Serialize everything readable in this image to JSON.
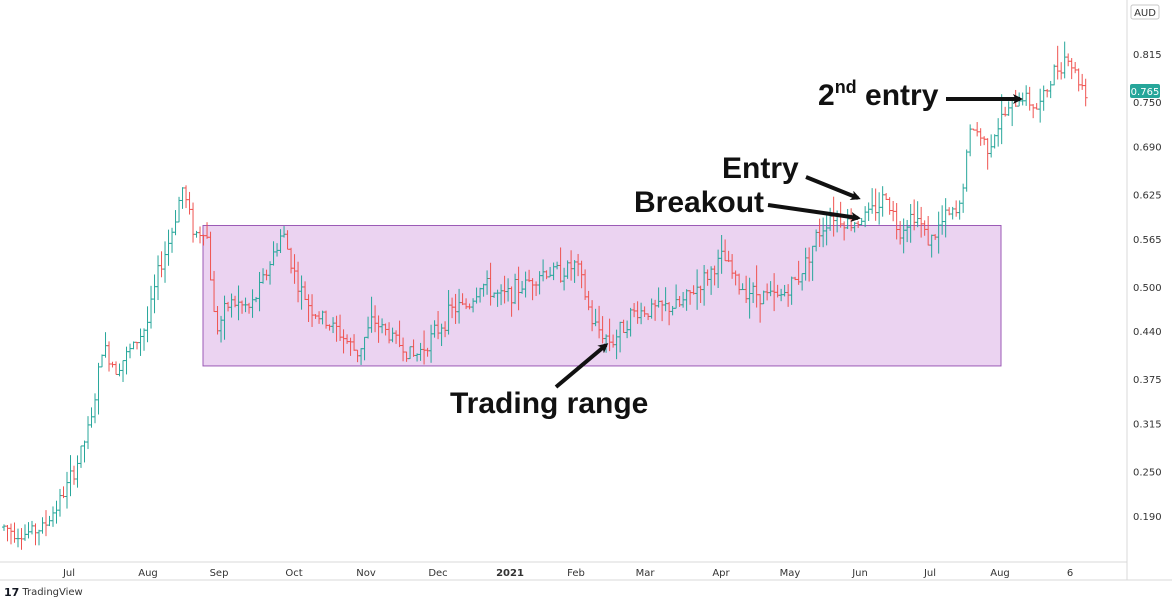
{
  "branding": {
    "logo_icon": "tradingview-logo-icon",
    "label": "TradingView"
  },
  "currency_label": "AUD",
  "annotations": {
    "second_entry": {
      "main": "2",
      "sup": "nd",
      "rest": " entry"
    },
    "entry": "Entry",
    "breakout": "Breakout",
    "trading_range": "Trading range"
  },
  "colors": {
    "up": "#26a69a",
    "down": "#ef5350",
    "range_fill": "#e4c4ec",
    "range_stroke": "#9b59b6",
    "last_price_bg": "#26a69a",
    "annotation_text": "#111111"
  },
  "chart_data": {
    "type": "ohlc",
    "symbol_currency": "AUD",
    "last_price": 0.765,
    "last_price_label": "0.765",
    "y_ticks": [
      0.815,
      0.75,
      0.69,
      0.625,
      0.565,
      0.5,
      0.44,
      0.375,
      0.315,
      0.25,
      0.19
    ],
    "y_tick_labels": [
      "0.815",
      "0.750",
      "0.690",
      "0.625",
      "0.565",
      "0.500",
      "0.440",
      "0.375",
      "0.315",
      "0.250",
      "0.190"
    ],
    "ylim": [
      0.14,
      0.875
    ],
    "x_ticks": [
      "Jul",
      "Aug",
      "Sep",
      "Oct",
      "Nov",
      "Dec",
      "2021",
      "Feb",
      "Mar",
      "Apr",
      "May",
      "Jun",
      "Jul",
      "Aug",
      "6"
    ],
    "grid": false,
    "trading_range": {
      "low": 0.393,
      "high": 0.583,
      "start": "Sep",
      "end": "Aug"
    },
    "price_path": [
      [
        0,
        0.175
      ],
      [
        12,
        0.165
      ],
      [
        25,
        0.175
      ],
      [
        35,
        0.21
      ],
      [
        45,
        0.255
      ],
      [
        55,
        0.32
      ],
      [
        62,
        0.42
      ],
      [
        70,
        0.39
      ],
      [
        80,
        0.415
      ],
      [
        90,
        0.45
      ],
      [
        97,
        0.52
      ],
      [
        105,
        0.57
      ],
      [
        112,
        0.635
      ],
      [
        120,
        0.57
      ],
      [
        127,
        0.58
      ],
      [
        133,
        0.44
      ],
      [
        142,
        0.48
      ],
      [
        155,
        0.47
      ],
      [
        165,
        0.52
      ],
      [
        175,
        0.575
      ],
      [
        185,
        0.5
      ],
      [
        195,
        0.465
      ],
      [
        210,
        0.44
      ],
      [
        222,
        0.41
      ],
      [
        232,
        0.455
      ],
      [
        245,
        0.43
      ],
      [
        258,
        0.405
      ],
      [
        272,
        0.44
      ],
      [
        282,
        0.47
      ],
      [
        292,
        0.475
      ],
      [
        300,
        0.505
      ],
      [
        312,
        0.485
      ],
      [
        325,
        0.5
      ],
      [
        338,
        0.52
      ],
      [
        350,
        0.52
      ],
      [
        360,
        0.53
      ],
      [
        370,
        0.45
      ],
      [
        382,
        0.425
      ],
      [
        395,
        0.465
      ],
      [
        410,
        0.47
      ],
      [
        425,
        0.475
      ],
      [
        440,
        0.51
      ],
      [
        452,
        0.54
      ],
      [
        462,
        0.5
      ],
      [
        475,
        0.49
      ],
      [
        487,
        0.485
      ],
      [
        500,
        0.515
      ],
      [
        510,
        0.565
      ],
      [
        520,
        0.6
      ],
      [
        532,
        0.585
      ],
      [
        545,
        0.6
      ],
      [
        555,
        0.625
      ],
      [
        562,
        0.575
      ],
      [
        572,
        0.6
      ],
      [
        582,
        0.56
      ],
      [
        592,
        0.595
      ],
      [
        600,
        0.6
      ],
      [
        608,
        0.72
      ],
      [
        618,
        0.69
      ],
      [
        628,
        0.73
      ],
      [
        640,
        0.76
      ],
      [
        650,
        0.74
      ],
      [
        660,
        0.79
      ],
      [
        668,
        0.815
      ],
      [
        675,
        0.78
      ],
      [
        680,
        0.765
      ]
    ]
  }
}
